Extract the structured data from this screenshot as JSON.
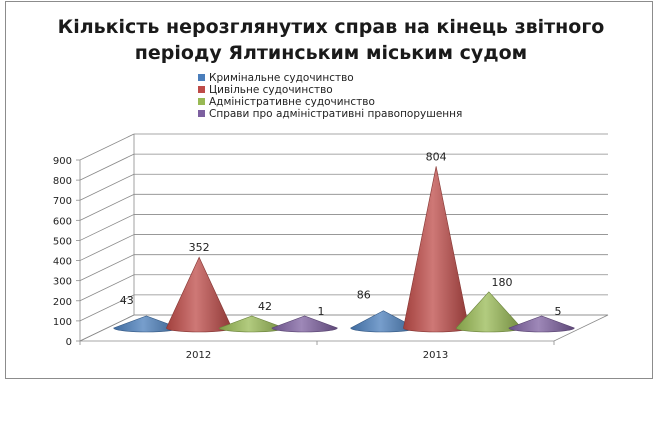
{
  "chart_data": {
    "type": "bar",
    "subtype": "3d-cone",
    "title_lines": [
      "Кількість нерозглянутих справ на кінець звітного",
      "періоду Ялтинським міським судом"
    ],
    "categories": [
      "2012",
      "2013"
    ],
    "series": [
      {
        "name": "Кримінальне судочинство",
        "values": [
          43,
          86
        ],
        "color": "#4a7ebb"
      },
      {
        "name": "Цивільне судочинство",
        "values": [
          352,
          804
        ],
        "color": "#be4b48"
      },
      {
        "name": "Адміністративне судочинство",
        "values": [
          42,
          180
        ],
        "color": "#98b954"
      },
      {
        "name": "Справи про адміністративні правопорушення",
        "values": [
          1,
          5
        ],
        "color": "#7d60a0"
      }
    ],
    "y_ticks": [
      "0",
      "100",
      "200",
      "300",
      "400",
      "500",
      "600",
      "700",
      "800",
      "900"
    ],
    "ylim": [
      0,
      900
    ],
    "legend_position": "top",
    "grid": true
  }
}
